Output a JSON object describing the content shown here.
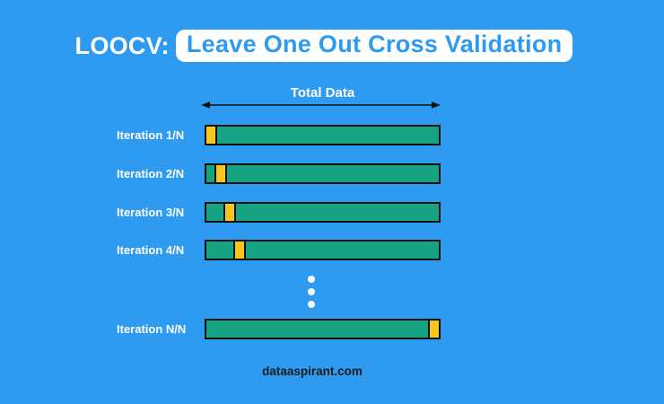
{
  "title": {
    "prefix": "LOOCV:",
    "highlight": "Leave One Out Cross Validation"
  },
  "axis": {
    "label": "Total Data"
  },
  "iterations": [
    {
      "label": "Iteration 1/N",
      "holdout_slot": 0
    },
    {
      "label": "Iteration 2/N",
      "holdout_slot": 1
    },
    {
      "label": "Iteration 3/N",
      "holdout_slot": 2
    },
    {
      "label": "Iteration 4/N",
      "holdout_slot": 3
    },
    {
      "label": "Iteration N/N",
      "holdout_slot": "last"
    }
  ],
  "ellipsis_dot_count": 3,
  "footer": {
    "site": "dataaspirant.com"
  },
  "colors": {
    "background": "#2e9af0",
    "train_bar_green": "#16a383",
    "holdout_yellow": "#f7c71f",
    "outline_black": "#111111",
    "title_highlight_bg": "#ffffff",
    "title_prefix_text": "#ffffff",
    "title_highlight_text": "#2e9af0",
    "label_text": "#ffffff",
    "footer_text": "#1b1b1b",
    "arrow": "#111111",
    "dots": "#ffffff"
  }
}
